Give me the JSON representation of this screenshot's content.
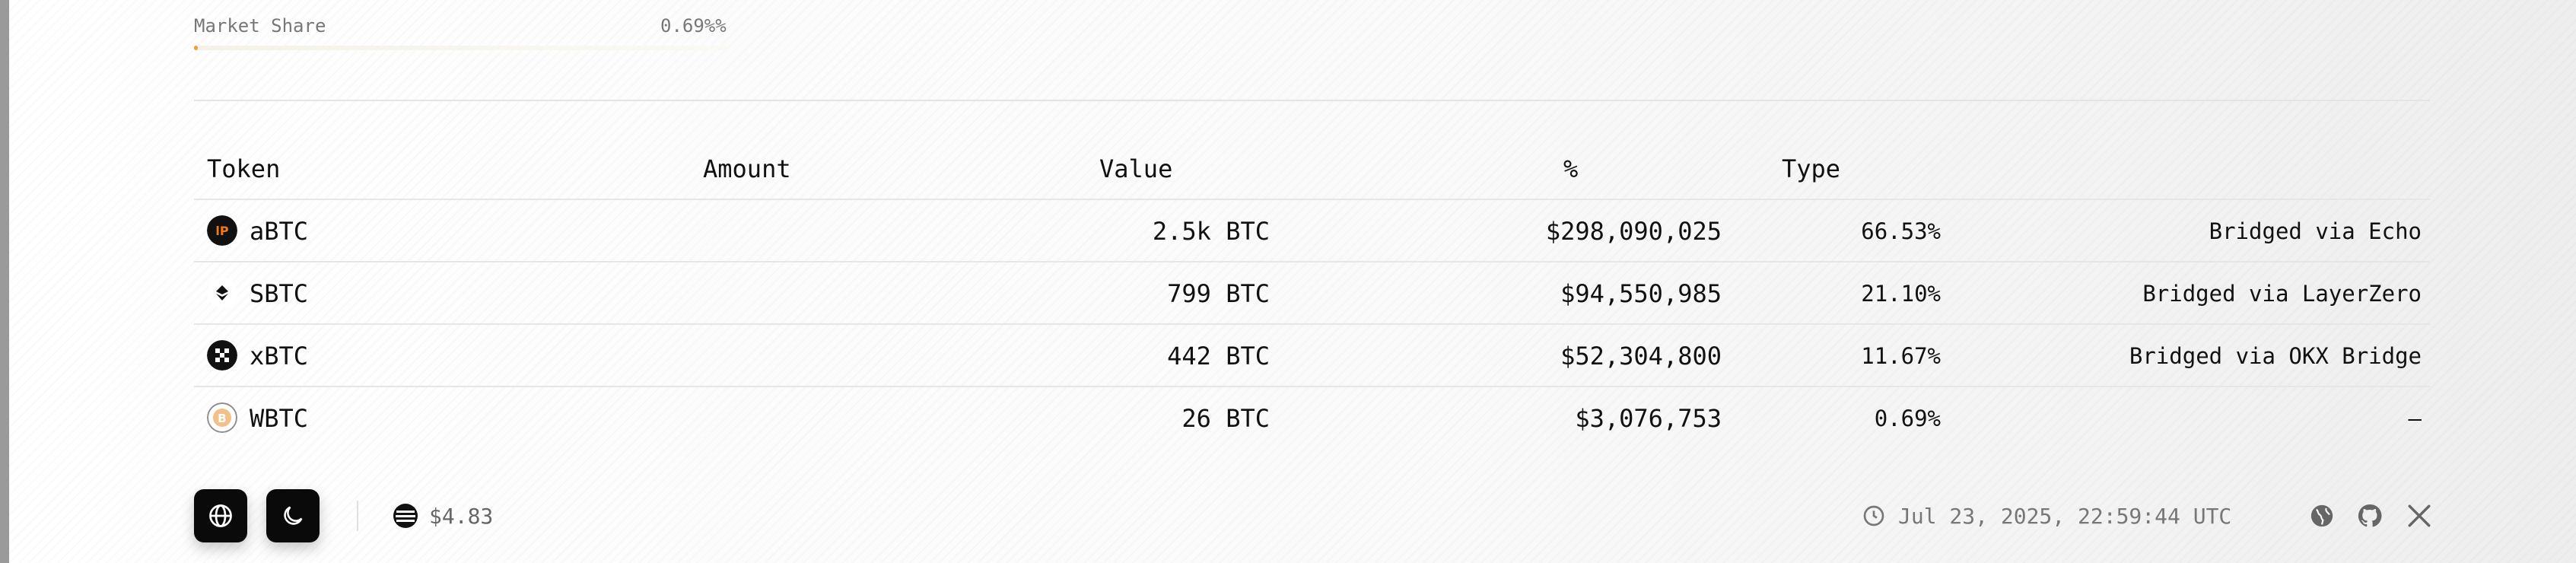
{
  "market_share": {
    "label": "Market Share",
    "value_text": "0.69%%",
    "fill_fraction": 0.0069,
    "accent_color": "#f0a13a"
  },
  "table": {
    "columns": [
      "Token",
      "Amount",
      "Value",
      "%",
      "Type"
    ],
    "rows": [
      {
        "token": "aBTC",
        "icon": "echo-lp-icon",
        "amount": "2.5k BTC",
        "value": "$298,090,025",
        "percent": "66.53%",
        "type": "Bridged via Echo"
      },
      {
        "token": "SBTC",
        "icon": "layerzero-icon",
        "amount": "799 BTC",
        "value": "$94,550,985",
        "percent": "21.10%",
        "type": "Bridged via LayerZero"
      },
      {
        "token": "xBTC",
        "icon": "okx-icon",
        "amount": "442 BTC",
        "value": "$52,304,800",
        "percent": "11.67%",
        "type": "Bridged via OKX Bridge"
      },
      {
        "token": "WBTC",
        "icon": "wbtc-icon",
        "amount": "26 BTC",
        "value": "$3,076,753",
        "percent": "0.69%",
        "type": "–"
      }
    ]
  },
  "footer": {
    "price_icon": "coin-stack-icon",
    "price": "$4.83",
    "timestamp": "Jul 23, 2025, 22:59:44 UTC",
    "social": [
      "globe-icon",
      "github-icon",
      "x-icon"
    ]
  }
}
